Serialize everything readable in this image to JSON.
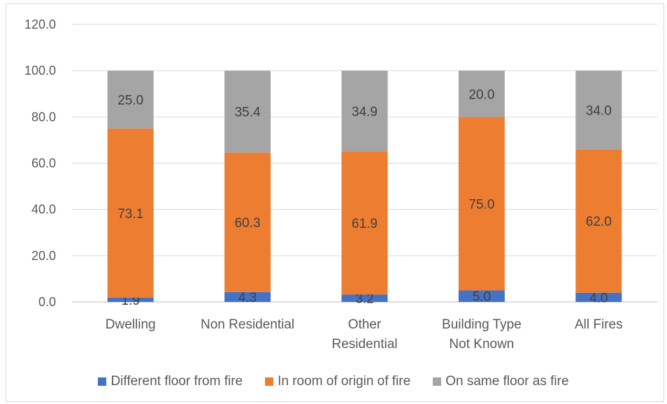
{
  "chart_data": {
    "type": "bar",
    "stacked": true,
    "title": "",
    "xlabel": "",
    "ylabel": "",
    "ylim": [
      0,
      120
    ],
    "yticks": [
      "0.0",
      "20.0",
      "40.0",
      "60.0",
      "80.0",
      "100.0",
      "120.0"
    ],
    "grid": true,
    "legend_position": "bottom",
    "categories": [
      [
        "Dwelling"
      ],
      [
        "Non Residential"
      ],
      [
        "Other",
        "Residential"
      ],
      [
        "Building Type",
        "Not Known"
      ],
      [
        "All Fires"
      ]
    ],
    "series": [
      {
        "name": "Different floor from fire",
        "color": "#4472c4",
        "values": [
          1.9,
          4.3,
          3.2,
          5.0,
          4.0
        ],
        "labels": [
          "1.9",
          "4.3",
          "3.2",
          "5.0",
          "4.0"
        ]
      },
      {
        "name": "In room of origin of fire",
        "color": "#ed7d31",
        "values": [
          73.1,
          60.3,
          61.9,
          75.0,
          62.0
        ],
        "labels": [
          "73.1",
          "60.3",
          "61.9",
          "75.0",
          "62.0"
        ]
      },
      {
        "name": "On same floor as fire",
        "color": "#a5a5a5",
        "values": [
          25.0,
          35.4,
          34.9,
          20.0,
          34.0
        ],
        "labels": [
          "25.0",
          "35.4",
          "34.9",
          "20.0",
          "34.0"
        ]
      }
    ]
  }
}
